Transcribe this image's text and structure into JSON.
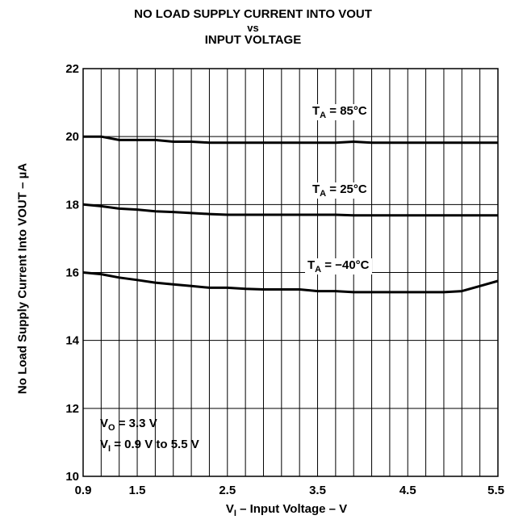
{
  "chart_data": {
    "type": "line",
    "title_lines": [
      "NO LOAD SUPPLY CURRENT INTO VOUT",
      "vs",
      "INPUT VOLTAGE"
    ],
    "xlabel": {
      "sym": "V",
      "sub": "I",
      "text": " – Input Voltage – V"
    },
    "ylabel": "No Load Supply Current Into VOUT – µA",
    "xlim": [
      0.9,
      5.5
    ],
    "ylim": [
      10,
      22
    ],
    "x_tick_labels": [
      "0.9",
      "1.5",
      "2.5",
      "3.5",
      "4.5",
      "5.5"
    ],
    "x_ticks": [
      0.9,
      1.5,
      2.5,
      3.5,
      4.5,
      5.5
    ],
    "y_tick_labels": [
      "10",
      "12",
      "14",
      "16",
      "18",
      "20",
      "22"
    ],
    "y_ticks": [
      10,
      12,
      14,
      16,
      18,
      20,
      22
    ],
    "x_grid_step": 0.2,
    "y_grid_step": 2,
    "grid": true,
    "annotations": [
      {
        "sym": "V",
        "sub": "O",
        "text": " = 3.3 V"
      },
      {
        "sym": "V",
        "sub": "I",
        "text": " = 0.9 V to 5.5 V"
      }
    ],
    "series": [
      {
        "name": "85°C",
        "label": {
          "sym": "T",
          "sub": "A",
          "text": " = 85°C"
        },
        "x": [
          0.9,
          1.1,
          1.3,
          1.5,
          1.7,
          1.9,
          2.1,
          2.3,
          2.5,
          2.7,
          2.9,
          3.1,
          3.3,
          3.5,
          3.7,
          3.9,
          4.1,
          4.3,
          4.5,
          4.7,
          4.9,
          5.1,
          5.3,
          5.5
        ],
        "y": [
          20.0,
          20.0,
          19.9,
          19.9,
          19.9,
          19.85,
          19.85,
          19.82,
          19.82,
          19.82,
          19.82,
          19.82,
          19.82,
          19.82,
          19.82,
          19.85,
          19.82,
          19.82,
          19.82,
          19.82,
          19.82,
          19.82,
          19.82,
          19.82
        ]
      },
      {
        "name": "25°C",
        "label": {
          "sym": "T",
          "sub": "A",
          "text": " = 25°C"
        },
        "x": [
          0.9,
          1.1,
          1.3,
          1.5,
          1.7,
          1.9,
          2.1,
          2.3,
          2.5,
          2.7,
          2.9,
          3.1,
          3.3,
          3.5,
          3.7,
          3.9,
          4.1,
          4.3,
          4.5,
          4.7,
          4.9,
          5.1,
          5.3,
          5.5
        ],
        "y": [
          18.0,
          17.95,
          17.88,
          17.85,
          17.8,
          17.78,
          17.75,
          17.72,
          17.7,
          17.7,
          17.7,
          17.7,
          17.7,
          17.7,
          17.7,
          17.68,
          17.68,
          17.68,
          17.68,
          17.68,
          17.68,
          17.68,
          17.68,
          17.68
        ]
      },
      {
        "name": "−40°C",
        "label": {
          "sym": "T",
          "sub": "A",
          "text": " = −40°C"
        },
        "x": [
          0.9,
          1.1,
          1.3,
          1.5,
          1.7,
          1.9,
          2.1,
          2.3,
          2.5,
          2.7,
          2.9,
          3.1,
          3.3,
          3.5,
          3.7,
          3.9,
          4.1,
          4.3,
          4.5,
          4.7,
          4.9,
          5.1,
          5.3,
          5.5
        ],
        "y": [
          16.0,
          15.95,
          15.85,
          15.78,
          15.7,
          15.65,
          15.6,
          15.55,
          15.55,
          15.52,
          15.5,
          15.5,
          15.5,
          15.45,
          15.45,
          15.42,
          15.42,
          15.42,
          15.42,
          15.42,
          15.42,
          15.45,
          15.6,
          15.75
        ]
      }
    ]
  }
}
